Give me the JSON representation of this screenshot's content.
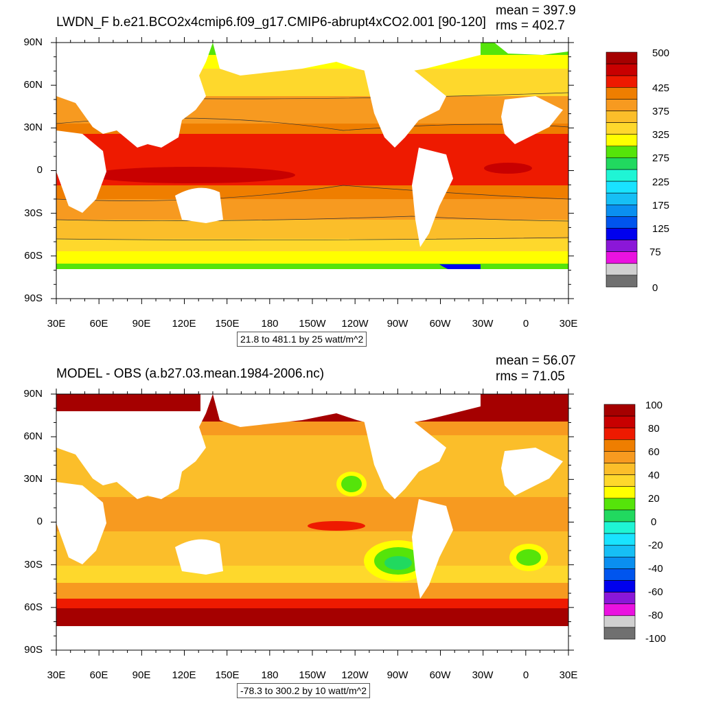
{
  "panels": [
    {
      "title": "LWDN_F b.e21.BCO2x4cmip6.f09_g17.CMIP6-abrupt4xCO2.001 [90-120]",
      "mean": "mean = 397.9",
      "rms": "rms = 402.7",
      "range": "21.8 to 481.1 by 25 watt/m^2",
      "lat_labels": [
        "90N",
        "60N",
        "30N",
        "0",
        "30S",
        "60S",
        "90S"
      ],
      "lon_labels": [
        "30E",
        "60E",
        "90E",
        "120E",
        "150E",
        "180",
        "150W",
        "120W",
        "90W",
        "60W",
        "30W",
        "0",
        "30E"
      ],
      "colorbar_labels": [
        "500",
        "425",
        "375",
        "325",
        "275",
        "225",
        "175",
        "125",
        "75",
        "0"
      ],
      "colorbar_colors": [
        "#a50000",
        "#c80000",
        "#ee1a00",
        "#ef7e00",
        "#f79a20",
        "#fbbe2a",
        "#fed82c",
        "#ffff00",
        "#55e40a",
        "#21d95f",
        "#1ff5d5",
        "#19e3ff",
        "#16bff5",
        "#0a8ff0",
        "#0055ee",
        "#0000ee",
        "#8b17d8",
        "#ea12e0",
        "#d0d0d0",
        "#707070"
      ]
    },
    {
      "title": "MODEL - OBS (a.b27.03.mean.1984-2006.nc)",
      "mean": "mean = 56.07",
      "rms": "rms = 71.05",
      "range": "-78.3 to 300.2 by 10 watt/m^2",
      "lat_labels": [
        "90N",
        "60N",
        "30N",
        "0",
        "30S",
        "60S",
        "90S"
      ],
      "lon_labels": [
        "30E",
        "60E",
        "90E",
        "120E",
        "150E",
        "180",
        "150W",
        "120W",
        "90W",
        "60W",
        "30W",
        "0",
        "30E"
      ],
      "colorbar_labels": [
        "100",
        "80",
        "60",
        "40",
        "20",
        "0",
        "-20",
        "-40",
        "-60",
        "-80",
        "-100"
      ],
      "colorbar_colors": [
        "#a50000",
        "#c80000",
        "#ee1a00",
        "#ef7e00",
        "#f79a20",
        "#fbbe2a",
        "#fed82c",
        "#ffff00",
        "#55e40a",
        "#21d95f",
        "#1ff5d5",
        "#19e3ff",
        "#16bff5",
        "#0a8ff0",
        "#0055ee",
        "#0000ee",
        "#8b17d8",
        "#ea12e0",
        "#d0d0d0",
        "#707070"
      ]
    }
  ]
}
